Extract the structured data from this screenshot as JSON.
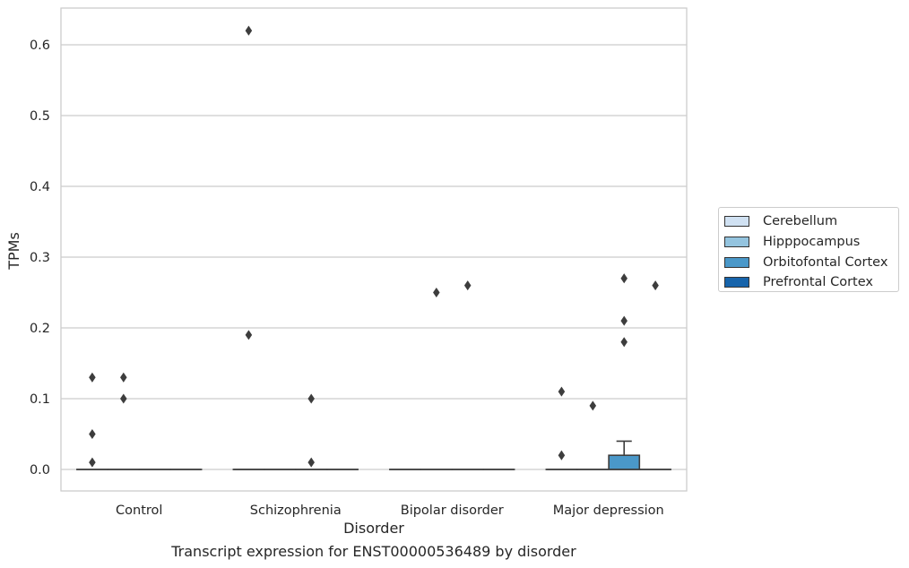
{
  "caption": "Transcript expression for ENST00000536489 by disorder",
  "legend": {
    "items": [
      {
        "label": "Cerebellum",
        "color": "#d0e1f2"
      },
      {
        "label": "Hipppocampus",
        "color": "#94c4df"
      },
      {
        "label": "Orbitofontal Cortex",
        "color": "#4a98c9"
      },
      {
        "label": "Prefrontal Cortex",
        "color": "#1764ab"
      }
    ]
  },
  "chart_data": {
    "type": "box",
    "title": "",
    "xlabel": "Disorder",
    "ylabel": "TPMs",
    "categories": [
      "Control",
      "Schizophrenia",
      "Bipolar disorder",
      "Major depression"
    ],
    "hue": [
      "Cerebellum",
      "Hipppocampus",
      "Orbitofontal Cortex",
      "Prefrontal Cortex"
    ],
    "ylim": [
      -0.03,
      0.65
    ],
    "yticks": [
      0.0,
      0.1,
      0.2,
      0.3,
      0.4,
      0.5,
      0.6
    ],
    "yticklabels": [
      "0.0",
      "0.1",
      "0.2",
      "0.3",
      "0.4",
      "0.5",
      "0.6"
    ],
    "grid": "horizontal",
    "legend_position": "right",
    "series": [
      {
        "name": "Cerebellum",
        "boxes": [
          {
            "q1": 0,
            "median": 0,
            "q3": 0,
            "whislo": 0,
            "whishi": 0,
            "fliers": [
              0.13,
              0.05,
              0.01
            ]
          },
          {
            "q1": 0,
            "median": 0,
            "q3": 0,
            "whislo": 0,
            "whishi": 0,
            "fliers": [
              0.62,
              0.19
            ]
          },
          {
            "q1": 0,
            "median": 0,
            "q3": 0,
            "whislo": 0,
            "whishi": 0,
            "fliers": []
          },
          {
            "q1": 0,
            "median": 0,
            "q3": 0,
            "whislo": 0,
            "whishi": 0,
            "fliers": [
              0.11,
              0.02
            ]
          }
        ]
      },
      {
        "name": "Hipppocampus",
        "boxes": [
          {
            "q1": 0,
            "median": 0,
            "q3": 0,
            "whislo": 0,
            "whishi": 0,
            "fliers": [
              0.13,
              0.1
            ]
          },
          {
            "q1": 0,
            "median": 0,
            "q3": 0,
            "whislo": 0,
            "whishi": 0,
            "fliers": []
          },
          {
            "q1": 0,
            "median": 0,
            "q3": 0,
            "whislo": 0,
            "whishi": 0,
            "fliers": [
              0.25
            ]
          },
          {
            "q1": 0,
            "median": 0,
            "q3": 0,
            "whislo": 0,
            "whishi": 0,
            "fliers": [
              0.09
            ]
          }
        ]
      },
      {
        "name": "Orbitofontal Cortex",
        "boxes": [
          {
            "q1": 0,
            "median": 0,
            "q3": 0,
            "whislo": 0,
            "whishi": 0,
            "fliers": []
          },
          {
            "q1": 0,
            "median": 0,
            "q3": 0,
            "whislo": 0,
            "whishi": 0,
            "fliers": [
              0.01,
              0.1
            ]
          },
          {
            "q1": 0,
            "median": 0,
            "q3": 0,
            "whislo": 0,
            "whishi": 0,
            "fliers": [
              0.26
            ]
          },
          {
            "q1": 0,
            "median": 0,
            "q3": 0.02,
            "whislo": 0,
            "whishi": 0.04,
            "fliers": [
              0.27,
              0.21,
              0.18
            ]
          }
        ]
      },
      {
        "name": "Prefrontal Cortex",
        "boxes": [
          {
            "q1": 0,
            "median": 0,
            "q3": 0,
            "whislo": 0,
            "whishi": 0,
            "fliers": []
          },
          {
            "q1": 0,
            "median": 0,
            "q3": 0,
            "whislo": 0,
            "whishi": 0,
            "fliers": []
          },
          {
            "q1": 0,
            "median": 0,
            "q3": 0,
            "whislo": 0,
            "whishi": 0,
            "fliers": []
          },
          {
            "q1": 0,
            "median": 0,
            "q3": 0,
            "whislo": 0,
            "whishi": 0,
            "fliers": [
              0.26
            ]
          }
        ]
      }
    ]
  }
}
